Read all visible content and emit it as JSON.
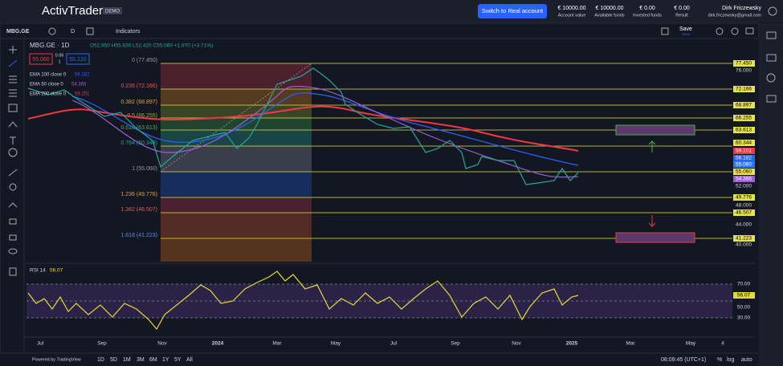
{
  "header": {
    "logo": "ActivTrader",
    "badge": "DEMO",
    "cta": "Switch to Real account",
    "stats": [
      {
        "value": "€ 10000.00",
        "label": "Account value"
      },
      {
        "value": "€ 10000.00",
        "label": "Available funds"
      },
      {
        "value": "€ 0.00",
        "label": "Invested funds"
      },
      {
        "value": "€ 0.00",
        "label": "Result"
      }
    ],
    "user": {
      "name": "Dirk Friczewsky",
      "email": "dirk.friczewsky@gmail.com"
    }
  },
  "toolbar": {
    "symbol": "MBG.GE",
    "interval": "D",
    "indicators": "Indicators",
    "save": "Save",
    "save_sub": "Save"
  },
  "legend": {
    "title": "MBG.GE · 1D",
    "ohlc": "O52.850 H55.630 L52.420 C55.060 +1.970 (+3.71%)",
    "sell": "55.060",
    "spread": "0.06",
    "qty": "1",
    "buy": "55.120",
    "ema": [
      {
        "label": "EMA 100 close 0",
        "value": "56.182"
      },
      {
        "label": "EMA 50 close 0",
        "value": "54.366"
      },
      {
        "label": "EMA 200 close 0",
        "value": "59.151"
      }
    ]
  },
  "fib_levels": [
    {
      "label": "0 (77.450)",
      "price": "77.450"
    },
    {
      "label": "0.236 (72.166)",
      "price": "72.166"
    },
    {
      "label": "0.382 (68.897)",
      "price": "68.897"
    },
    {
      "label": "0.5 (66.255)",
      "price": "66.255"
    },
    {
      "label": "0.618 (63.613)",
      "price": "63.613"
    },
    {
      "label": "0.764 (60.344)",
      "price": "60.344"
    },
    {
      "label": "1 (55.060)",
      "price": "55.060"
    },
    {
      "label": "1.236 (49.776)",
      "price": "49.776"
    },
    {
      "label": "1.382 (46.507)",
      "price": "46.507"
    },
    {
      "label": "1.618 (41.223)",
      "price": "41.223"
    }
  ],
  "current_price": "55.060",
  "price_axis": [
    "76.000",
    "52.000",
    "48.000",
    "44.000",
    "40.000"
  ],
  "rsi": {
    "label": "RSI 14",
    "value": "56.07",
    "axis": [
      "70.00",
      "50.00",
      "30.00"
    ]
  },
  "time_axis": [
    "Jul",
    "Sep",
    "Nov",
    "2024",
    "Mar",
    "May",
    "Jul",
    "Sep",
    "Nov",
    "2025",
    "Mar",
    "May",
    "4"
  ],
  "footer": {
    "powered": "Powered by TradingView",
    "ranges": [
      "1D",
      "5D",
      "1M",
      "3M",
      "6M",
      "1Y",
      "5Y",
      "All"
    ],
    "clock": "08:09:45 (UTC+1)",
    "percent": "%",
    "log": "log",
    "auto": "auto"
  }
}
